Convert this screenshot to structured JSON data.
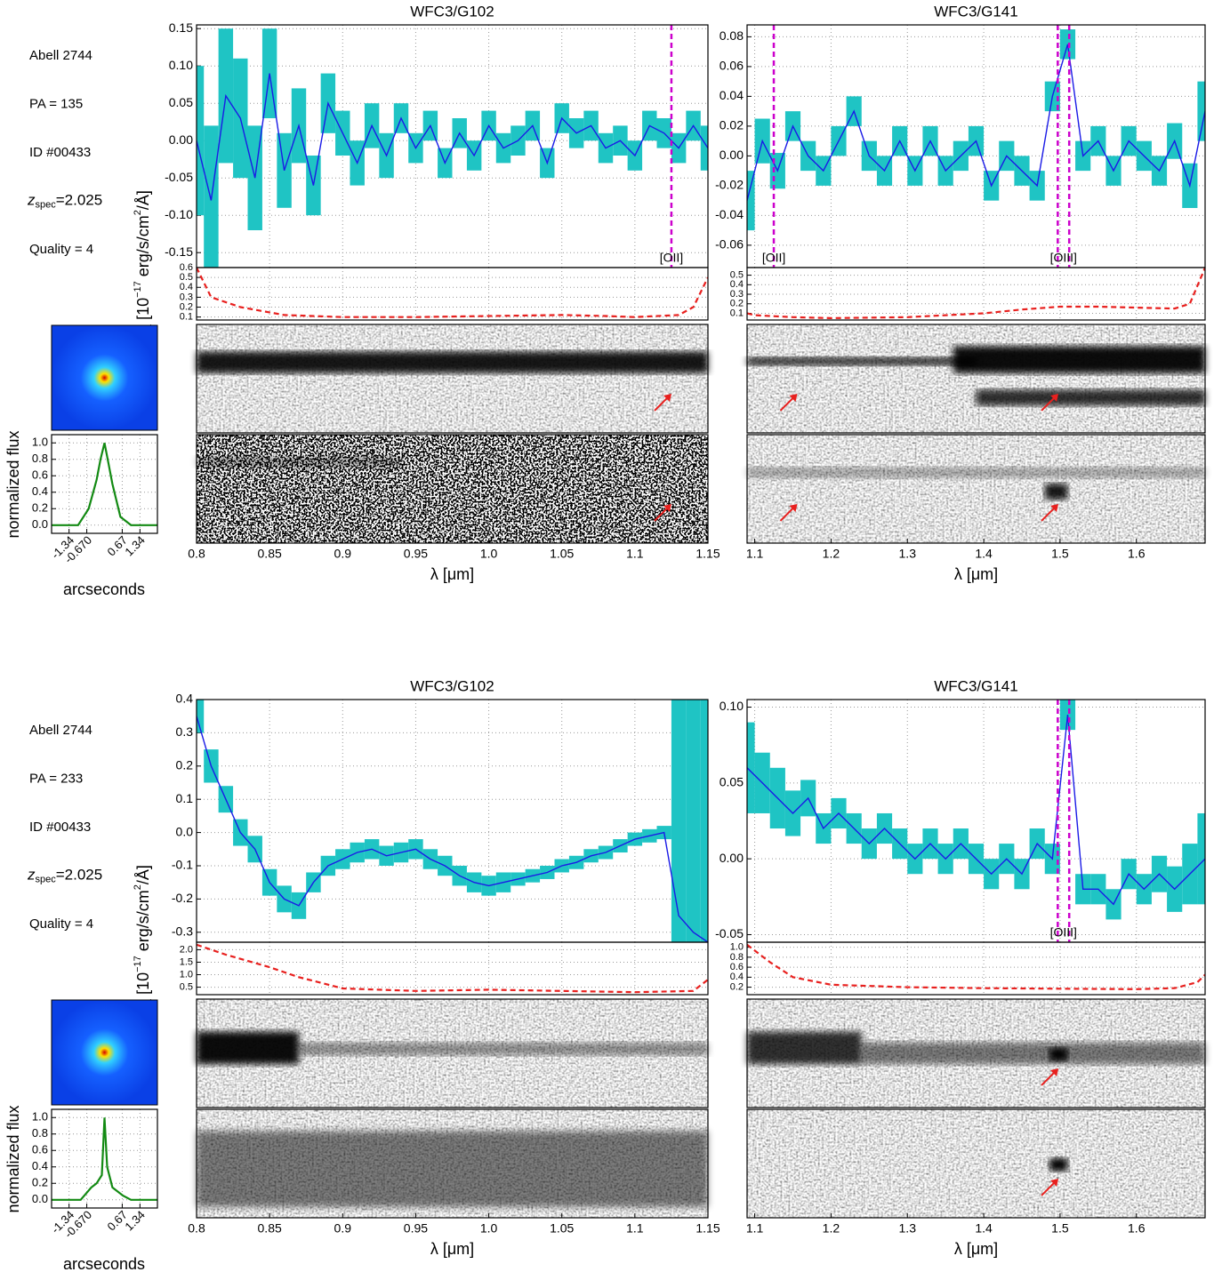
{
  "info": [
    {
      "cluster": "Abell 2744",
      "pa": "PA = 135",
      "id": "ID #00433",
      "z": {
        "symbol": "z",
        "subscript": "spec",
        "value": "=2.025"
      },
      "quality": "Quality = 4"
    },
    {
      "cluster": "Abell 2744",
      "pa": "PA = 233",
      "id": "ID #00433",
      "z": {
        "symbol": "z",
        "subscript": "spec",
        "value": "=2.025"
      },
      "quality": "Quality = 4"
    }
  ],
  "chart_data": [
    {
      "type": "line",
      "title": "WFC3/G102",
      "xlabel": "λ [μm]",
      "ylabel": [
        "F",
        "λ",
        " [10",
        "−17",
        " erg/s/cm",
        "2",
        "/Å]"
      ],
      "x": [
        0.8,
        0.81,
        0.82,
        0.83,
        0.84,
        0.85,
        0.86,
        0.87,
        0.88,
        0.89,
        0.9,
        0.91,
        0.92,
        0.93,
        0.94,
        0.95,
        0.96,
        0.97,
        0.98,
        0.99,
        1.0,
        1.01,
        1.02,
        1.03,
        1.04,
        1.05,
        1.06,
        1.07,
        1.08,
        1.09,
        1.1,
        1.11,
        1.12,
        1.13,
        1.14,
        1.15
      ],
      "values": [
        0.0,
        -0.08,
        0.06,
        0.03,
        -0.05,
        0.09,
        -0.04,
        0.02,
        -0.06,
        0.05,
        0.01,
        -0.03,
        0.02,
        -0.02,
        0.03,
        -0.01,
        0.02,
        -0.03,
        0.01,
        -0.02,
        0.02,
        -0.01,
        0.0,
        0.02,
        -0.03,
        0.03,
        0.01,
        0.02,
        -0.01,
        0.0,
        -0.02,
        0.02,
        0.01,
        -0.01,
        0.02,
        -0.01
      ],
      "errors": [
        0.1,
        0.1,
        0.09,
        0.08,
        0.07,
        0.06,
        0.05,
        0.05,
        0.04,
        0.04,
        0.03,
        0.03,
        0.03,
        0.03,
        0.02,
        0.02,
        0.02,
        0.02,
        0.02,
        0.02,
        0.02,
        0.02,
        0.02,
        0.02,
        0.02,
        0.02,
        0.02,
        0.02,
        0.02,
        0.02,
        0.02,
        0.02,
        0.02,
        0.02,
        0.02,
        0.03
      ],
      "color": "#1a1ae6",
      "error_color": "#1fc4c4",
      "lines": [
        {
          "x": [
            1.125
          ],
          "label": "[OII]"
        }
      ],
      "line_color": "#cc00cc",
      "xlim": [
        0.8,
        1.15
      ],
      "xticks": [
        0.8,
        0.85,
        0.9,
        0.95,
        {
          "value": 1.0,
          "label": "1.0"
        },
        1.05,
        1.1,
        1.15
      ],
      "ylim": [
        -0.17,
        0.155
      ],
      "yticks": [
        0.15,
        {
          "value": 0.1,
          "label": "0.10"
        },
        0.05,
        {
          "value": 0,
          "label": "0.00"
        },
        -0.05,
        {
          "value": -0.1,
          "label": "-0.10"
        },
        -0.15
      ],
      "grid": true
    },
    {
      "type": "line",
      "title": "WFC3/G141",
      "xlabel": "λ [μm]",
      "x": [
        1.09,
        1.11,
        1.13,
        1.15,
        1.17,
        1.19,
        1.21,
        1.23,
        1.25,
        1.27,
        1.29,
        1.31,
        1.33,
        1.35,
        1.37,
        1.39,
        1.41,
        1.43,
        1.45,
        1.47,
        1.49,
        1.51,
        1.53,
        1.55,
        1.57,
        1.59,
        1.61,
        1.63,
        1.65,
        1.67,
        1.69
      ],
      "values": [
        -0.03,
        0.01,
        -0.01,
        0.02,
        0.0,
        -0.01,
        0.01,
        0.03,
        0.0,
        -0.01,
        0.01,
        -0.01,
        0.01,
        -0.01,
        0.0,
        0.01,
        -0.02,
        0.0,
        -0.01,
        -0.02,
        0.04,
        0.075,
        0.0,
        0.01,
        -0.01,
        0.01,
        0.0,
        -0.01,
        0.01,
        -0.02,
        0.03
      ],
      "errors": [
        0.02,
        0.015,
        0.012,
        0.01,
        0.01,
        0.01,
        0.01,
        0.01,
        0.01,
        0.01,
        0.01,
        0.01,
        0.01,
        0.01,
        0.01,
        0.01,
        0.01,
        0.01,
        0.01,
        0.01,
        0.01,
        0.01,
        0.01,
        0.01,
        0.01,
        0.01,
        0.01,
        0.01,
        0.012,
        0.015,
        0.02
      ],
      "color": "#1a1ae6",
      "error_color": "#1fc4c4",
      "lines": [
        {
          "x": [
            1.125
          ],
          "label": "[OII]"
        },
        {
          "x": [
            1.497,
            1.512
          ],
          "label": "[OIII]"
        }
      ],
      "line_color": "#cc00cc",
      "xlim": [
        1.09,
        1.69
      ],
      "xticks": [
        1.1,
        1.2,
        1.3,
        1.4,
        1.5,
        1.6
      ],
      "ylim": [
        -0.075,
        0.088
      ],
      "yticks": [
        0.08,
        0.06,
        0.04,
        0.02,
        {
          "value": 0,
          "label": "0.00"
        },
        -0.02,
        -0.04,
        -0.06
      ],
      "grid": true
    },
    {
      "type": "line",
      "linestyle": "dashed",
      "color": "#e8201e",
      "x": [
        0.8,
        0.81,
        0.83,
        0.86,
        0.9,
        0.95,
        1.0,
        1.05,
        1.08,
        1.1,
        1.13,
        1.14,
        1.15
      ],
      "values": [
        0.6,
        0.3,
        0.2,
        0.12,
        0.1,
        0.1,
        0.11,
        0.12,
        0.11,
        0.1,
        0.12,
        0.2,
        0.5
      ],
      "xlim": [
        0.8,
        1.15
      ],
      "ylim": [
        0.07,
        0.6
      ],
      "yticks": [
        0.1,
        0.2,
        0.3,
        0.4,
        0.5,
        0.6
      ],
      "grid": true
    },
    {
      "type": "line",
      "linestyle": "dashed",
      "color": "#e8201e",
      "x": [
        1.09,
        1.1,
        1.15,
        1.2,
        1.3,
        1.4,
        1.45,
        1.5,
        1.55,
        1.6,
        1.65,
        1.67,
        1.69
      ],
      "values": [
        0.1,
        0.08,
        0.06,
        0.05,
        0.06,
        0.1,
        0.14,
        0.17,
        0.17,
        0.16,
        0.15,
        0.2,
        0.58
      ],
      "xlim": [
        1.09,
        1.69
      ],
      "ylim": [
        0.03,
        0.58
      ],
      "yticks": [
        0.1,
        0.2,
        0.3,
        0.4,
        0.5
      ],
      "grid": true
    },
    {
      "type": "line",
      "xlabel": "arcseconds",
      "ylabel": "normalized flux",
      "color": "#138a13",
      "x": [
        -2,
        -1,
        -0.6,
        -0.3,
        -0.15,
        0,
        0.15,
        0.3,
        0.6,
        1,
        2
      ],
      "values": [
        0,
        0,
        0.2,
        0.55,
        0.8,
        1.0,
        0.75,
        0.5,
        0.1,
        0,
        0
      ],
      "xlim": [
        -2,
        2
      ],
      "xticks": [
        -1.34,
        {
          "value": -0.67,
          "label": "-0.670"
        },
        0.67,
        1.34
      ],
      "ylim": [
        -0.1,
        1.1
      ],
      "yticks": [
        {
          "value": 0,
          "label": "0.0"
        },
        0.2,
        0.4,
        0.6,
        0.8,
        {
          "value": 1,
          "label": "1.0"
        }
      ],
      "grid": true
    },
    {
      "type": "line",
      "title": "WFC3/G102",
      "xlabel": "λ [μm]",
      "ylabel": [
        "F",
        "λ",
        " [10",
        "−17",
        " erg/s/cm",
        "2",
        "/Å]"
      ],
      "x": [
        0.8,
        0.81,
        0.82,
        0.83,
        0.84,
        0.85,
        0.86,
        0.87,
        0.88,
        0.89,
        0.9,
        0.91,
        0.92,
        0.93,
        0.94,
        0.95,
        0.96,
        0.97,
        0.98,
        0.99,
        1.0,
        1.01,
        1.02,
        1.03,
        1.04,
        1.05,
        1.06,
        1.07,
        1.08,
        1.09,
        1.1,
        1.11,
        1.12,
        1.13,
        1.14,
        1.15
      ],
      "values": [
        0.35,
        0.2,
        0.1,
        0.0,
        -0.05,
        -0.15,
        -0.2,
        -0.22,
        -0.15,
        -0.1,
        -0.08,
        -0.06,
        -0.05,
        -0.07,
        -0.06,
        -0.05,
        -0.08,
        -0.1,
        -0.13,
        -0.15,
        -0.16,
        -0.15,
        -0.14,
        -0.13,
        -0.12,
        -0.1,
        -0.09,
        -0.07,
        -0.06,
        -0.04,
        -0.02,
        -0.01,
        0.0,
        -0.25,
        -0.3,
        -0.33
      ],
      "errors": [
        0.05,
        0.05,
        0.04,
        0.04,
        0.04,
        0.04,
        0.04,
        0.04,
        0.03,
        0.03,
        0.03,
        0.03,
        0.03,
        0.03,
        0.03,
        0.03,
        0.03,
        0.03,
        0.03,
        0.03,
        0.03,
        0.03,
        0.02,
        0.02,
        0.02,
        0.02,
        0.02,
        0.02,
        0.02,
        0.02,
        0.02,
        0.02,
        0.02,
        1.0,
        1.0,
        1.0
      ],
      "color": "#1a1ae6",
      "error_color": "#1fc4c4",
      "line_color": "#cc00cc",
      "xlim": [
        0.8,
        1.15
      ],
      "xticks": [
        0.8,
        0.85,
        0.9,
        0.95,
        {
          "value": 1.0,
          "label": "1.0"
        },
        1.05,
        1.1,
        1.15
      ],
      "ylim": [
        -0.33,
        0.4
      ],
      "yticks": [
        0.4,
        0.3,
        0.2,
        0.1,
        {
          "value": 0,
          "label": "0.0"
        },
        -0.1,
        -0.2,
        -0.3
      ],
      "grid": true
    },
    {
      "type": "line",
      "title": "WFC3/G141",
      "xlabel": "λ [μm]",
      "x": [
        1.09,
        1.11,
        1.13,
        1.15,
        1.17,
        1.19,
        1.21,
        1.23,
        1.25,
        1.27,
        1.29,
        1.31,
        1.33,
        1.35,
        1.37,
        1.39,
        1.41,
        1.43,
        1.45,
        1.47,
        1.49,
        1.51,
        1.53,
        1.55,
        1.57,
        1.59,
        1.61,
        1.63,
        1.65,
        1.67,
        1.69
      ],
      "values": [
        0.06,
        0.05,
        0.04,
        0.03,
        0.04,
        0.02,
        0.03,
        0.02,
        0.01,
        0.02,
        0.01,
        0.0,
        0.01,
        0.0,
        0.01,
        0.0,
        -0.01,
        0.0,
        -0.01,
        0.01,
        0.0,
        0.095,
        -0.02,
        -0.02,
        -0.03,
        -0.01,
        -0.02,
        -0.01,
        -0.02,
        -0.01,
        0.0
      ],
      "errors": [
        0.03,
        0.02,
        0.02,
        0.015,
        0.012,
        0.01,
        0.01,
        0.01,
        0.01,
        0.01,
        0.01,
        0.01,
        0.01,
        0.01,
        0.01,
        0.01,
        0.01,
        0.01,
        0.01,
        0.01,
        0.01,
        0.01,
        0.01,
        0.01,
        0.01,
        0.01,
        0.01,
        0.012,
        0.015,
        0.02,
        0.03
      ],
      "color": "#1a1ae6",
      "error_color": "#1fc4c4",
      "lines": [
        {
          "x": [
            1.497,
            1.512
          ],
          "label": "[OIII]"
        }
      ],
      "line_color": "#cc00cc",
      "xlim": [
        1.09,
        1.69
      ],
      "xticks": [
        1.1,
        1.2,
        1.3,
        1.4,
        1.5,
        1.6
      ],
      "ylim": [
        -0.055,
        0.105
      ],
      "yticks": [
        {
          "value": 0.1,
          "label": "0.10"
        },
        0.05,
        {
          "value": 0,
          "label": "0.00"
        },
        -0.05
      ],
      "grid": true
    },
    {
      "type": "line",
      "linestyle": "dashed",
      "color": "#e8201e",
      "x": [
        0.8,
        0.82,
        0.85,
        0.87,
        0.9,
        0.95,
        1.0,
        1.05,
        1.1,
        1.14,
        1.15
      ],
      "values": [
        2.2,
        1.8,
        1.3,
        0.9,
        0.45,
        0.35,
        0.4,
        0.35,
        0.3,
        0.35,
        0.8
      ],
      "xlim": [
        0.8,
        1.15
      ],
      "ylim": [
        0.2,
        2.3
      ],
      "yticks": [
        0.5,
        {
          "value": 1,
          "label": "1.0"
        },
        1.5,
        {
          "value": 2,
          "label": "2.0"
        }
      ],
      "grid": true
    },
    {
      "type": "line",
      "linestyle": "dashed",
      "color": "#e8201e",
      "x": [
        1.09,
        1.12,
        1.15,
        1.2,
        1.3,
        1.4,
        1.5,
        1.6,
        1.65,
        1.68,
        1.69
      ],
      "values": [
        1.05,
        0.7,
        0.4,
        0.25,
        0.2,
        0.18,
        0.17,
        0.16,
        0.18,
        0.3,
        0.45
      ],
      "xlim": [
        1.09,
        1.69
      ],
      "ylim": [
        0.05,
        1.1
      ],
      "yticks": [
        0.2,
        0.4,
        0.6,
        0.8,
        {
          "value": 1,
          "label": "1.0"
        }
      ],
      "grid": true
    },
    {
      "type": "line",
      "xlabel": "arcseconds",
      "ylabel": "normalized flux",
      "color": "#138a13",
      "x": [
        -2,
        -0.9,
        -0.5,
        -0.3,
        -0.1,
        0,
        0.1,
        0.3,
        0.7,
        1,
        2
      ],
      "values": [
        0,
        0,
        0.15,
        0.2,
        0.3,
        1.0,
        0.4,
        0.15,
        0.05,
        0,
        0
      ],
      "xlim": [
        -2,
        2
      ],
      "xticks": [
        -1.34,
        {
          "value": -0.67,
          "label": "-0.670"
        },
        0.67,
        1.34
      ],
      "ylim": [
        -0.1,
        1.1
      ],
      "yticks": [
        {
          "value": 0,
          "label": "0.0"
        },
        0.2,
        0.4,
        0.6,
        0.8,
        {
          "value": 1,
          "label": "1.0"
        }
      ],
      "grid": true
    }
  ]
}
